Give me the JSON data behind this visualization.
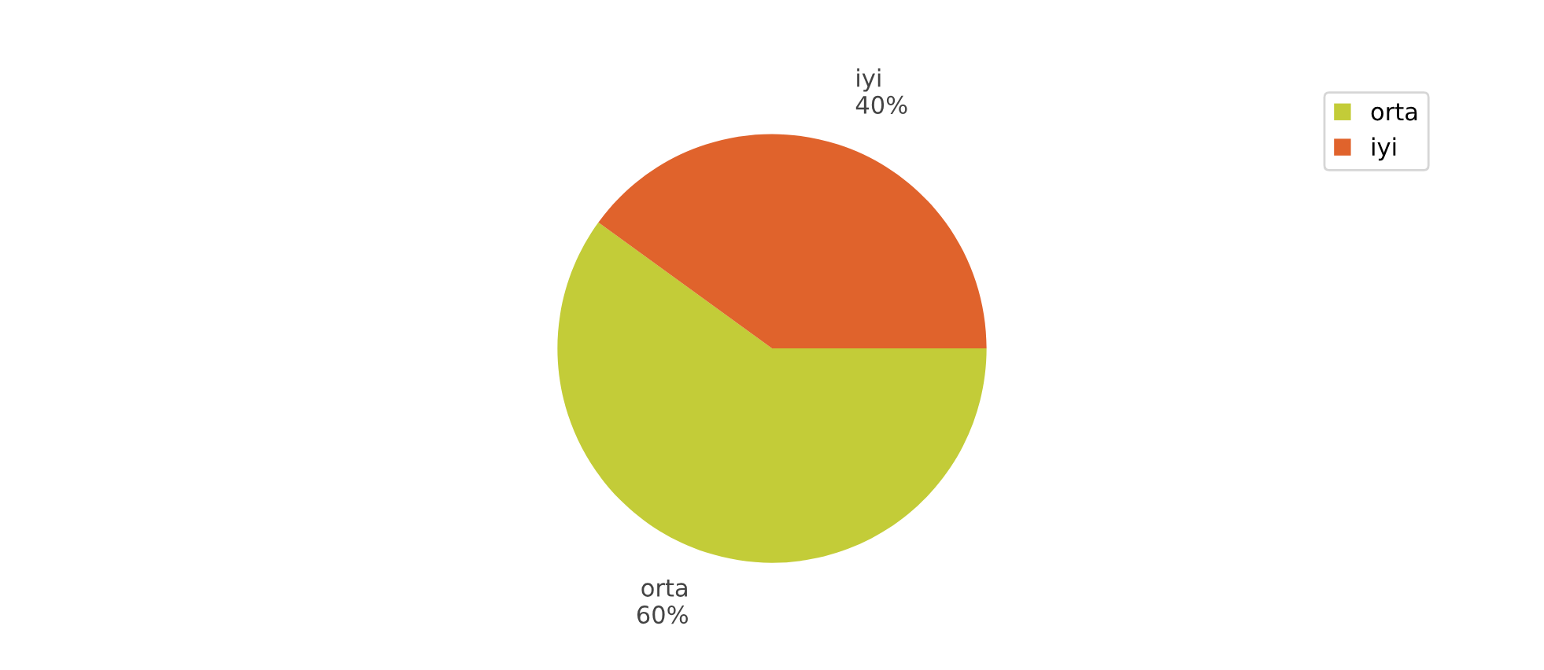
{
  "chart_data": {
    "type": "pie",
    "categories": [
      "orta",
      "iyi"
    ],
    "values": [
      60,
      40
    ],
    "colors": [
      "#c3cc38",
      "#e0632c"
    ],
    "value_labels": [
      "60%",
      "40%"
    ],
    "legend": "top right"
  }
}
